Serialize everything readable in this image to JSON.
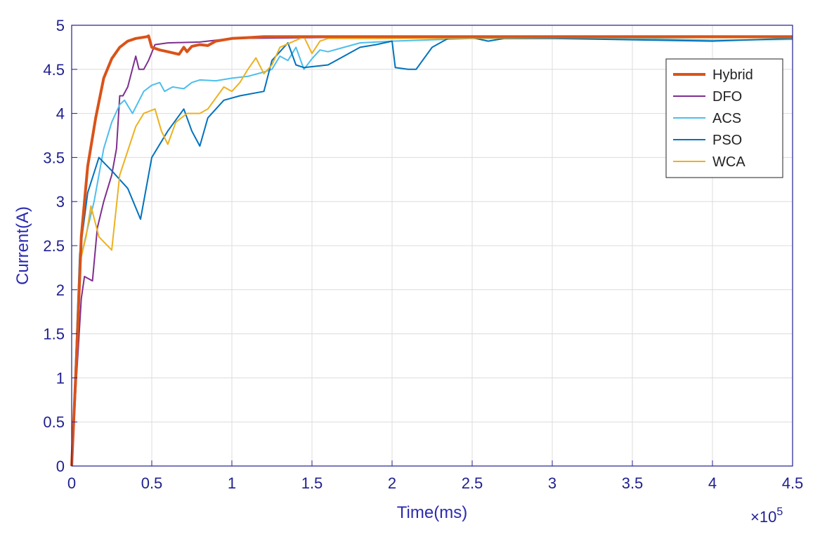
{
  "chart_data": {
    "type": "line",
    "xlabel": "Time(ms)",
    "ylabel": "Current(A)",
    "x_exponent_label": "×10",
    "x_exponent_power": "5",
    "xlim": [
      0,
      4.5
    ],
    "ylim": [
      0,
      5
    ],
    "x_ticks": [
      "0",
      "0.5",
      "1",
      "1.5",
      "2",
      "2.5",
      "3",
      "3.5",
      "4",
      "4.5"
    ],
    "y_ticks": [
      "0",
      "0.5",
      "1",
      "1.5",
      "2",
      "2.5",
      "3",
      "3.5",
      "4",
      "4.5",
      "5"
    ],
    "grid": true,
    "legend_position": "top-right",
    "series": [
      {
        "name": "Hybrid",
        "color": "#D95319",
        "width": 4,
        "points": [
          [
            0,
            0
          ],
          [
            0.03,
            1.2
          ],
          [
            0.06,
            2.6
          ],
          [
            0.1,
            3.4
          ],
          [
            0.15,
            3.95
          ],
          [
            0.2,
            4.4
          ],
          [
            0.25,
            4.62
          ],
          [
            0.3,
            4.75
          ],
          [
            0.35,
            4.82
          ],
          [
            0.4,
            4.85
          ],
          [
            0.47,
            4.87
          ],
          [
            0.48,
            4.88
          ],
          [
            0.5,
            4.75
          ],
          [
            0.55,
            4.72
          ],
          [
            0.6,
            4.7
          ],
          [
            0.67,
            4.67
          ],
          [
            0.7,
            4.75
          ],
          [
            0.72,
            4.7
          ],
          [
            0.75,
            4.76
          ],
          [
            0.8,
            4.78
          ],
          [
            0.85,
            4.77
          ],
          [
            0.9,
            4.82
          ],
          [
            1.0,
            4.85
          ],
          [
            1.1,
            4.86
          ],
          [
            1.2,
            4.87
          ],
          [
            1.5,
            4.87
          ],
          [
            2.0,
            4.87
          ],
          [
            4.5,
            4.87
          ]
        ]
      },
      {
        "name": "DFO",
        "color": "#7E2F8E",
        "width": 2,
        "points": [
          [
            0,
            0
          ],
          [
            0.03,
            1.0
          ],
          [
            0.06,
            1.9
          ],
          [
            0.08,
            2.15
          ],
          [
            0.13,
            2.1
          ],
          [
            0.16,
            2.7
          ],
          [
            0.2,
            3.0
          ],
          [
            0.25,
            3.3
          ],
          [
            0.28,
            3.6
          ],
          [
            0.3,
            4.2
          ],
          [
            0.32,
            4.2
          ],
          [
            0.35,
            4.3
          ],
          [
            0.4,
            4.65
          ],
          [
            0.42,
            4.5
          ],
          [
            0.45,
            4.5
          ],
          [
            0.48,
            4.6
          ],
          [
            0.52,
            4.78
          ],
          [
            0.6,
            4.8
          ],
          [
            0.8,
            4.81
          ],
          [
            1.0,
            4.85
          ],
          [
            1.5,
            4.86
          ],
          [
            2.0,
            4.87
          ],
          [
            4.5,
            4.87
          ]
        ]
      },
      {
        "name": "ACS",
        "color": "#4DBEEE",
        "width": 2,
        "points": [
          [
            0,
            0
          ],
          [
            0.05,
            2.3
          ],
          [
            0.1,
            2.7
          ],
          [
            0.14,
            3.0
          ],
          [
            0.2,
            3.6
          ],
          [
            0.25,
            3.9
          ],
          [
            0.3,
            4.1
          ],
          [
            0.33,
            4.15
          ],
          [
            0.38,
            4.0
          ],
          [
            0.45,
            4.25
          ],
          [
            0.5,
            4.32
          ],
          [
            0.55,
            4.35
          ],
          [
            0.58,
            4.25
          ],
          [
            0.63,
            4.3
          ],
          [
            0.7,
            4.28
          ],
          [
            0.75,
            4.35
          ],
          [
            0.8,
            4.38
          ],
          [
            0.9,
            4.37
          ],
          [
            1.0,
            4.4
          ],
          [
            1.1,
            4.42
          ],
          [
            1.2,
            4.47
          ],
          [
            1.25,
            4.5
          ],
          [
            1.3,
            4.65
          ],
          [
            1.35,
            4.6
          ],
          [
            1.4,
            4.75
          ],
          [
            1.45,
            4.5
          ],
          [
            1.5,
            4.62
          ],
          [
            1.55,
            4.72
          ],
          [
            1.6,
            4.7
          ],
          [
            1.7,
            4.75
          ],
          [
            1.8,
            4.8
          ],
          [
            2.0,
            4.82
          ],
          [
            2.5,
            4.85
          ],
          [
            3.0,
            4.85
          ],
          [
            3.5,
            4.85
          ],
          [
            4.0,
            4.83
          ],
          [
            4.5,
            4.84
          ]
        ]
      },
      {
        "name": "PSO",
        "color": "#0072BD",
        "width": 2,
        "points": [
          [
            0,
            0
          ],
          [
            0.05,
            2.4
          ],
          [
            0.1,
            3.1
          ],
          [
            0.17,
            3.5
          ],
          [
            0.25,
            3.35
          ],
          [
            0.35,
            3.15
          ],
          [
            0.43,
            2.8
          ],
          [
            0.5,
            3.5
          ],
          [
            0.6,
            3.8
          ],
          [
            0.7,
            4.05
          ],
          [
            0.75,
            3.8
          ],
          [
            0.8,
            3.63
          ],
          [
            0.85,
            3.95
          ],
          [
            0.95,
            4.15
          ],
          [
            1.05,
            4.2
          ],
          [
            1.2,
            4.25
          ],
          [
            1.25,
            4.6
          ],
          [
            1.3,
            4.7
          ],
          [
            1.35,
            4.8
          ],
          [
            1.4,
            4.55
          ],
          [
            1.45,
            4.52
          ],
          [
            1.6,
            4.55
          ],
          [
            1.7,
            4.65
          ],
          [
            1.8,
            4.75
          ],
          [
            1.9,
            4.78
          ],
          [
            2.0,
            4.82
          ],
          [
            2.02,
            4.52
          ],
          [
            2.1,
            4.5
          ],
          [
            2.15,
            4.5
          ],
          [
            2.25,
            4.75
          ],
          [
            2.35,
            4.85
          ],
          [
            2.5,
            4.86
          ],
          [
            2.6,
            4.82
          ],
          [
            2.7,
            4.85
          ],
          [
            3.0,
            4.85
          ],
          [
            4.0,
            4.82
          ],
          [
            4.5,
            4.85
          ]
        ]
      },
      {
        "name": "WCA",
        "color": "#EDB120",
        "width": 2,
        "points": [
          [
            0,
            0
          ],
          [
            0.05,
            2.3
          ],
          [
            0.09,
            2.6
          ],
          [
            0.12,
            2.95
          ],
          [
            0.17,
            2.6
          ],
          [
            0.25,
            2.45
          ],
          [
            0.3,
            3.3
          ],
          [
            0.4,
            3.85
          ],
          [
            0.45,
            4.0
          ],
          [
            0.52,
            4.05
          ],
          [
            0.56,
            3.8
          ],
          [
            0.6,
            3.65
          ],
          [
            0.65,
            3.9
          ],
          [
            0.72,
            4.0
          ],
          [
            0.8,
            4.0
          ],
          [
            0.85,
            4.05
          ],
          [
            0.95,
            4.3
          ],
          [
            1.0,
            4.25
          ],
          [
            1.05,
            4.35
          ],
          [
            1.1,
            4.5
          ],
          [
            1.15,
            4.63
          ],
          [
            1.2,
            4.45
          ],
          [
            1.25,
            4.55
          ],
          [
            1.3,
            4.75
          ],
          [
            1.4,
            4.83
          ],
          [
            1.45,
            4.87
          ],
          [
            1.5,
            4.68
          ],
          [
            1.55,
            4.82
          ],
          [
            1.6,
            4.85
          ],
          [
            2.0,
            4.85
          ],
          [
            3.0,
            4.86
          ],
          [
            4.5,
            4.86
          ]
        ]
      }
    ]
  }
}
